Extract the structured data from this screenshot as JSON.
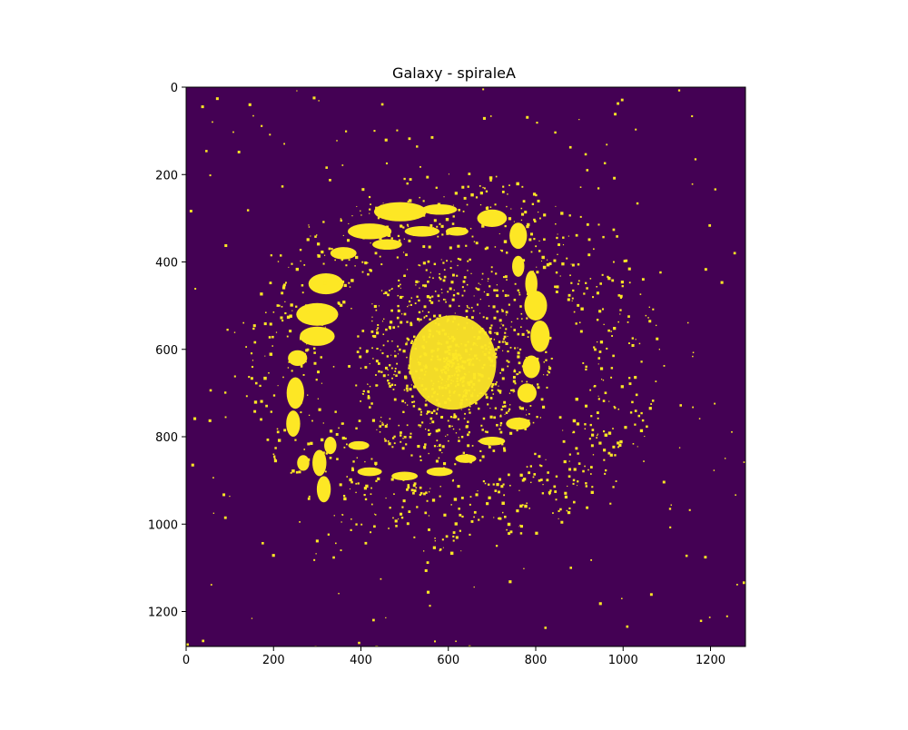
{
  "chart_data": {
    "type": "heatmap",
    "title": "Galaxy - spiraleA",
    "xlabel": "",
    "ylabel": "",
    "image_extent": {
      "x": [
        0,
        1280
      ],
      "y": [
        1280,
        0
      ]
    },
    "xlim": [
      0,
      1280
    ],
    "ylim": [
      1280,
      0
    ],
    "y_axis_inverted": true,
    "x_ticks": [
      0,
      200,
      400,
      600,
      800,
      1000,
      1200
    ],
    "y_ticks": [
      0,
      200,
      400,
      600,
      800,
      1000,
      1200
    ],
    "values": "binary thresholded image: 0 = background, 1 = galaxy pixels",
    "colormap": {
      "0": "#440154",
      "1": "#fde725"
    },
    "features": {
      "core": {
        "center": [
          610,
          630
        ],
        "radius": 120
      },
      "spiral_arm_outer_ring_radius": 380,
      "scattered_star_count_approx": 260
    },
    "grid": false,
    "legend": "none"
  }
}
